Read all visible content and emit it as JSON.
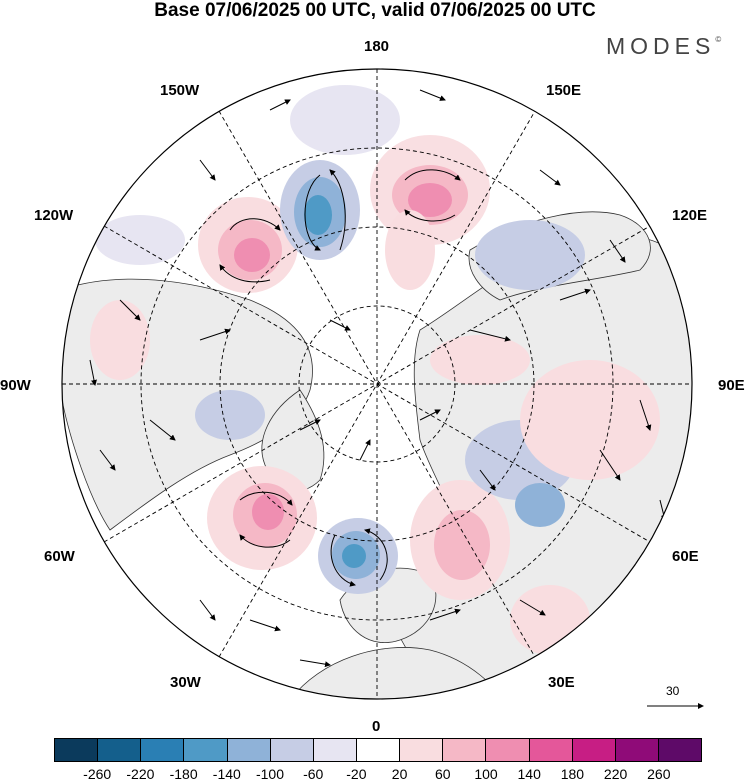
{
  "title": "Base 07/06/2025 00 UTC, valid 07/06/2025 00 UTC",
  "brand": "MODES",
  "brand_mark": "©",
  "longitude_labels": {
    "lon_180": "180",
    "lon_150e": "150E",
    "lon_120e": "120E",
    "lon_90e": "90E",
    "lon_60e": "60E",
    "lon_30e": "30E",
    "lon_0": "0",
    "lon_30w": "30W",
    "lon_60w": "60W",
    "lon_90w": "90W",
    "lon_120w": "120W",
    "lon_150w": "150W"
  },
  "reference_vector": "30",
  "colorbar": {
    "ticks": [
      "-260",
      "-220",
      "-180",
      "-140",
      "-100",
      "-60",
      "-20",
      "20",
      "60",
      "100",
      "140",
      "180",
      "220",
      "260"
    ],
    "colors": [
      "#0b3a5c",
      "#145f8c",
      "#2a7fb4",
      "#4f9ac6",
      "#8fb2d8",
      "#c6cde5",
      "#e7e5f2",
      "#ffffff",
      "#f9dde0",
      "#f5b8c6",
      "#ef8eb1",
      "#e4579a",
      "#c71e84",
      "#8f0b78",
      "#5e0a68"
    ]
  },
  "colors": {
    "land": "#ececec",
    "ocean": "#ffffff",
    "positive_anomaly": "#ef8eb1",
    "negative_anomaly": "#4f9ac6"
  }
}
